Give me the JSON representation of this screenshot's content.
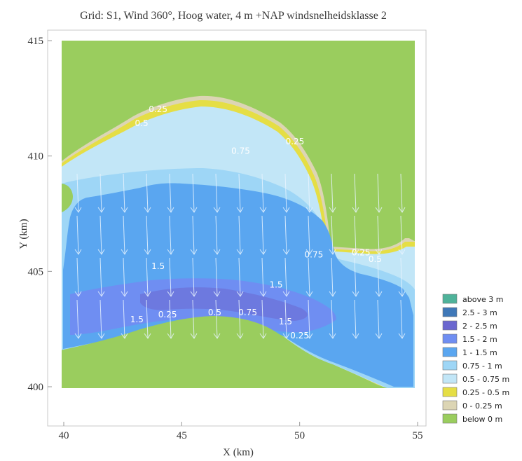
{
  "chart_data": {
    "type": "heatmap",
    "title": "Grid: S1, Wind 360°, Hoog water, 4 m +NAP windsnelheidsklasse 2",
    "xlabel": "X (km)",
    "ylabel": "Y (km)",
    "xlim": [
      40,
      55
    ],
    "ylim": [
      400,
      415
    ],
    "x_ticks": [
      "40",
      "45",
      "50",
      "55"
    ],
    "y_ticks": [
      "400",
      "405",
      "410",
      "415"
    ],
    "legend_position": "right",
    "legend": [
      {
        "label": "above 3 m",
        "color": "#4fb39a"
      },
      {
        "label": "2.5 - 3 m",
        "color": "#3f78b8"
      },
      {
        "label": "2 - 2.5 m",
        "color": "#6b67cf"
      },
      {
        "label": "1.5 - 2 m",
        "color": "#6f8ef2"
      },
      {
        "label": "1 - 1.5 m",
        "color": "#5aa6f0"
      },
      {
        "label": "0.75 - 1 m",
        "color": "#9ed6f6"
      },
      {
        "label": "0.5 - 0.75 m",
        "color": "#c2e6f7"
      },
      {
        "label": "0.25 - 0.5 m",
        "color": "#e5de45"
      },
      {
        "label": "0 - 0.25 m",
        "color": "#dcd5b4"
      },
      {
        "label": "below 0 m",
        "color": "#9acd5e"
      }
    ],
    "contour_labels": [
      {
        "text": "0.25",
        "x": 44.0,
        "y": 411.9
      },
      {
        "text": "0.5",
        "x": 43.3,
        "y": 411.3
      },
      {
        "text": "0.75",
        "x": 47.5,
        "y": 410.1
      },
      {
        "text": "0.25",
        "x": 49.8,
        "y": 410.5
      },
      {
        "text": "0.75",
        "x": 50.6,
        "y": 405.6
      },
      {
        "text": "0.25",
        "x": 52.6,
        "y": 405.7
      },
      {
        "text": "0.5",
        "x": 53.2,
        "y": 405.4
      },
      {
        "text": "1.5",
        "x": 44.0,
        "y": 405.1
      },
      {
        "text": "1.5",
        "x": 49.0,
        "y": 404.3
      },
      {
        "text": "1.5",
        "x": 43.1,
        "y": 402.8
      },
      {
        "text": "0.25",
        "x": 44.4,
        "y": 403.0
      },
      {
        "text": "0.5",
        "x": 46.4,
        "y": 403.1
      },
      {
        "text": "0.75",
        "x": 47.8,
        "y": 403.1
      },
      {
        "text": "1.5",
        "x": 49.4,
        "y": 402.7
      },
      {
        "text": "0.25",
        "x": 50.0,
        "y": 402.1
      }
    ],
    "wind_direction_deg": 360
  }
}
